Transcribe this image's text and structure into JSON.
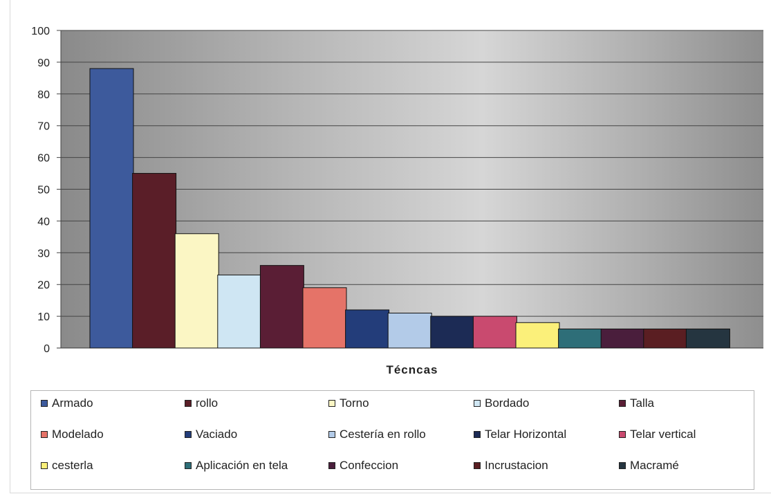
{
  "chart_data": {
    "type": "bar",
    "title": "",
    "xlabel": "Técncas",
    "ylabel": "",
    "ylim": [
      0,
      100
    ],
    "yticks": [
      0,
      10,
      20,
      30,
      40,
      50,
      60,
      70,
      80,
      90,
      100
    ],
    "grid": true,
    "legend_position": "bottom",
    "series": [
      {
        "name": "Armado",
        "value": 88,
        "color": "#3d5a9c"
      },
      {
        "name": "rollo",
        "value": 55,
        "color": "#5a1e28"
      },
      {
        "name": "Torno",
        "value": 36,
        "color": "#fbf6c4"
      },
      {
        "name": "Bordado",
        "value": 23,
        "color": "#cfe6f3"
      },
      {
        "name": "Talla",
        "value": 26,
        "color": "#5a1e35"
      },
      {
        "name": "Modelado",
        "value": 19,
        "color": "#e57368"
      },
      {
        "name": "Vaciado",
        "value": 12,
        "color": "#233d7a"
      },
      {
        "name": "Cestería en rollo",
        "value": 11,
        "color": "#b3cbe8"
      },
      {
        "name": "Telar Horizontal",
        "value": 10,
        "color": "#1c2b55"
      },
      {
        "name": "Telar vertical",
        "value": 10,
        "color": "#c94a6f"
      },
      {
        "name": "cesterla",
        "value": 8,
        "color": "#fbf07a"
      },
      {
        "name": "Aplicación en tela",
        "value": 6,
        "color": "#2e6e78"
      },
      {
        "name": "Confeccion",
        "value": 6,
        "color": "#4a1e3c"
      },
      {
        "name": "Incrustacion",
        "value": 6,
        "color": "#5a1e22"
      },
      {
        "name": "Macramé",
        "value": 6,
        "color": "#253540"
      }
    ]
  }
}
